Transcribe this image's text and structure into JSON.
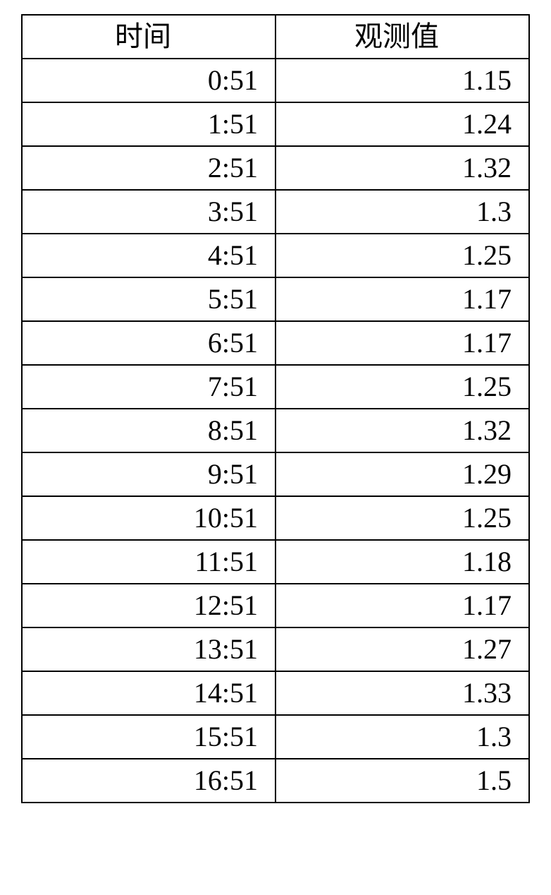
{
  "table": {
    "columns": [
      "时间",
      "观测值"
    ],
    "rows": [
      [
        "0:51",
        "1.15"
      ],
      [
        "1:51",
        "1.24"
      ],
      [
        "2:51",
        "1.32"
      ],
      [
        "3:51",
        "1.3"
      ],
      [
        "4:51",
        "1.25"
      ],
      [
        "5:51",
        "1.17"
      ],
      [
        "6:51",
        "1.17"
      ],
      [
        "7:51",
        "1.25"
      ],
      [
        "8:51",
        "1.32"
      ],
      [
        "9:51",
        "1.29"
      ],
      [
        "10:51",
        "1.25"
      ],
      [
        "11:51",
        "1.18"
      ],
      [
        "12:51",
        "1.17"
      ],
      [
        "13:51",
        "1.27"
      ],
      [
        "14:51",
        "1.33"
      ],
      [
        "15:51",
        "1.3"
      ],
      [
        "16:51",
        "1.5"
      ]
    ],
    "border_color": "#000000",
    "background_color": "#ffffff",
    "font_size_pt": 30,
    "header_align": "center",
    "cell_align": "right"
  }
}
